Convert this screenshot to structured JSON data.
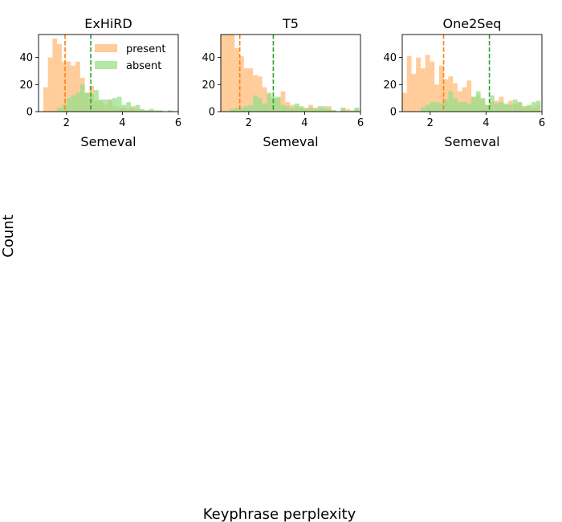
{
  "figure": {
    "ylabel": "Count",
    "xlabel": "Keyphrase perplexity"
  },
  "colors": {
    "present": "#ffbb78",
    "absent": "#98df8a",
    "present_mean_line": "#ff7f0e",
    "absent_mean_line": "#2ca02c"
  },
  "chart_data": [
    {
      "type": "histogram",
      "title": "ExHiRD",
      "xlabel": "Semeval",
      "ylabel": "",
      "xlim": [
        1.0,
        6.0
      ],
      "ylim": [
        0,
        57
      ],
      "xticks": [
        2,
        4,
        6
      ],
      "yticks": [
        0,
        20,
        40
      ],
      "bin_width": 0.165,
      "legend": {
        "placement": "top-right",
        "entries": [
          "present",
          "absent"
        ]
      },
      "series": [
        {
          "name": "present",
          "bins": [
            {
              "x": 1.17,
              "count": 18
            },
            {
              "x": 1.335,
              "count": 40
            },
            {
              "x": 1.5,
              "count": 54
            },
            {
              "x": 1.665,
              "count": 50
            },
            {
              "x": 1.83,
              "count": 37
            },
            {
              "x": 1.995,
              "count": 37
            },
            {
              "x": 2.16,
              "count": 34
            },
            {
              "x": 2.325,
              "count": 37
            },
            {
              "x": 2.49,
              "count": 25
            },
            {
              "x": 2.655,
              "count": 14
            },
            {
              "x": 2.82,
              "count": 19
            },
            {
              "x": 2.985,
              "count": 8
            },
            {
              "x": 3.15,
              "count": 8
            },
            {
              "x": 3.315,
              "count": 5
            },
            {
              "x": 3.48,
              "count": 9
            },
            {
              "x": 3.645,
              "count": 4
            },
            {
              "x": 3.81,
              "count": 3
            },
            {
              "x": 3.975,
              "count": 3
            },
            {
              "x": 4.14,
              "count": 2
            },
            {
              "x": 4.305,
              "count": 4
            },
            {
              "x": 4.47,
              "count": 2
            },
            {
              "x": 4.635,
              "count": 1
            },
            {
              "x": 4.8,
              "count": 1
            },
            {
              "x": 4.965,
              "count": 1
            }
          ],
          "mean": 1.95
        },
        {
          "name": "absent",
          "bins": [
            {
              "x": 1.665,
              "count": 3
            },
            {
              "x": 1.83,
              "count": 5
            },
            {
              "x": 1.995,
              "count": 10
            },
            {
              "x": 2.16,
              "count": 12
            },
            {
              "x": 2.325,
              "count": 14
            },
            {
              "x": 2.49,
              "count": 20
            },
            {
              "x": 2.655,
              "count": 14
            },
            {
              "x": 2.82,
              "count": 13
            },
            {
              "x": 2.985,
              "count": 16
            },
            {
              "x": 3.15,
              "count": 9
            },
            {
              "x": 3.315,
              "count": 9
            },
            {
              "x": 3.48,
              "count": 9
            },
            {
              "x": 3.645,
              "count": 10
            },
            {
              "x": 3.81,
              "count": 11
            },
            {
              "x": 3.975,
              "count": 5
            },
            {
              "x": 4.14,
              "count": 7
            },
            {
              "x": 4.305,
              "count": 3
            },
            {
              "x": 4.47,
              "count": 5
            },
            {
              "x": 4.635,
              "count": 2
            },
            {
              "x": 4.8,
              "count": 1
            },
            {
              "x": 4.965,
              "count": 2
            },
            {
              "x": 5.13,
              "count": 1
            },
            {
              "x": 5.295,
              "count": 1
            },
            {
              "x": 5.625,
              "count": 1
            }
          ],
          "mean": 2.87
        }
      ]
    },
    {
      "type": "histogram",
      "title": "T5",
      "xlabel": "Semeval",
      "ylabel": "",
      "xlim": [
        1.0,
        6.0
      ],
      "ylim": [
        0,
        57
      ],
      "xticks": [
        2,
        4,
        6
      ],
      "yticks": [
        0,
        20,
        40
      ],
      "bin_width": 0.165,
      "series": [
        {
          "name": "present",
          "bins": [
            {
              "x": 1.0,
              "count": 57
            },
            {
              "x": 1.165,
              "count": 57
            },
            {
              "x": 1.33,
              "count": 57
            },
            {
              "x": 1.495,
              "count": 47
            },
            {
              "x": 1.66,
              "count": 41
            },
            {
              "x": 1.825,
              "count": 32
            },
            {
              "x": 1.99,
              "count": 32
            },
            {
              "x": 2.155,
              "count": 27
            },
            {
              "x": 2.32,
              "count": 26
            },
            {
              "x": 2.485,
              "count": 18
            },
            {
              "x": 2.65,
              "count": 13
            },
            {
              "x": 2.815,
              "count": 10
            },
            {
              "x": 2.98,
              "count": 10
            },
            {
              "x": 3.145,
              "count": 15
            },
            {
              "x": 3.31,
              "count": 7
            },
            {
              "x": 3.475,
              "count": 5
            },
            {
              "x": 3.64,
              "count": 4
            },
            {
              "x": 3.805,
              "count": 3
            },
            {
              "x": 3.97,
              "count": 3
            },
            {
              "x": 4.135,
              "count": 5
            },
            {
              "x": 4.3,
              "count": 3
            },
            {
              "x": 4.465,
              "count": 3
            },
            {
              "x": 4.63,
              "count": 2
            },
            {
              "x": 4.795,
              "count": 4
            },
            {
              "x": 4.96,
              "count": 1
            },
            {
              "x": 5.29,
              "count": 2
            },
            {
              "x": 5.455,
              "count": 2
            },
            {
              "x": 5.785,
              "count": 2
            }
          ],
          "mean": 1.68
        },
        {
          "name": "absent",
          "bins": [
            {
              "x": 1.33,
              "count": 2
            },
            {
              "x": 1.495,
              "count": 3
            },
            {
              "x": 1.66,
              "count": 3
            },
            {
              "x": 1.825,
              "count": 4
            },
            {
              "x": 1.99,
              "count": 5
            },
            {
              "x": 2.155,
              "count": 12
            },
            {
              "x": 2.32,
              "count": 10
            },
            {
              "x": 2.485,
              "count": 6
            },
            {
              "x": 2.65,
              "count": 14
            },
            {
              "x": 2.815,
              "count": 11
            },
            {
              "x": 2.98,
              "count": 11
            },
            {
              "x": 3.145,
              "count": 5
            },
            {
              "x": 3.31,
              "count": 4
            },
            {
              "x": 3.475,
              "count": 3
            },
            {
              "x": 3.64,
              "count": 6
            },
            {
              "x": 3.805,
              "count": 4
            },
            {
              "x": 3.97,
              "count": 2
            },
            {
              "x": 4.135,
              "count": 3
            },
            {
              "x": 4.3,
              "count": 2
            },
            {
              "x": 4.465,
              "count": 4
            },
            {
              "x": 4.63,
              "count": 4
            },
            {
              "x": 4.795,
              "count": 2
            },
            {
              "x": 4.96,
              "count": 1
            },
            {
              "x": 5.29,
              "count": 3
            },
            {
              "x": 5.62,
              "count": 1
            },
            {
              "x": 5.785,
              "count": 3
            }
          ],
          "mean": 2.88
        }
      ]
    },
    {
      "type": "histogram",
      "title": "One2Seq",
      "xlabel": "Semeval",
      "ylabel": "",
      "xlim": [
        1.0,
        6.0
      ],
      "ylim": [
        0,
        57
      ],
      "xticks": [
        2,
        4,
        6
      ],
      "yticks": [
        0,
        20,
        40
      ],
      "bin_width": 0.165,
      "series": [
        {
          "name": "present",
          "bins": [
            {
              "x": 1.0,
              "count": 14
            },
            {
              "x": 1.165,
              "count": 41
            },
            {
              "x": 1.33,
              "count": 28
            },
            {
              "x": 1.495,
              "count": 40
            },
            {
              "x": 1.66,
              "count": 32
            },
            {
              "x": 1.825,
              "count": 42
            },
            {
              "x": 1.99,
              "count": 37
            },
            {
              "x": 2.155,
              "count": 20
            },
            {
              "x": 2.32,
              "count": 34
            },
            {
              "x": 2.485,
              "count": 24
            },
            {
              "x": 2.65,
              "count": 26
            },
            {
              "x": 2.815,
              "count": 21
            },
            {
              "x": 2.98,
              "count": 15
            },
            {
              "x": 3.145,
              "count": 18
            },
            {
              "x": 3.31,
              "count": 23
            },
            {
              "x": 3.475,
              "count": 11
            },
            {
              "x": 3.64,
              "count": 12
            },
            {
              "x": 3.805,
              "count": 9
            },
            {
              "x": 3.97,
              "count": 5
            },
            {
              "x": 4.135,
              "count": 7
            },
            {
              "x": 4.3,
              "count": 8
            },
            {
              "x": 4.465,
              "count": 11
            },
            {
              "x": 4.63,
              "count": 5
            },
            {
              "x": 4.795,
              "count": 8
            },
            {
              "x": 4.96,
              "count": 6
            },
            {
              "x": 5.125,
              "count": 7
            },
            {
              "x": 5.29,
              "count": 4
            },
            {
              "x": 5.455,
              "count": 4
            },
            {
              "x": 5.62,
              "count": 3
            },
            {
              "x": 5.785,
              "count": 5
            }
          ],
          "mean": 2.48
        },
        {
          "name": "absent",
          "bins": [
            {
              "x": 1.66,
              "count": 3
            },
            {
              "x": 1.825,
              "count": 5
            },
            {
              "x": 1.99,
              "count": 7
            },
            {
              "x": 2.155,
              "count": 7
            },
            {
              "x": 2.32,
              "count": 6
            },
            {
              "x": 2.485,
              "count": 9
            },
            {
              "x": 2.65,
              "count": 15
            },
            {
              "x": 2.815,
              "count": 10
            },
            {
              "x": 2.98,
              "count": 7
            },
            {
              "x": 3.145,
              "count": 7
            },
            {
              "x": 3.31,
              "count": 6
            },
            {
              "x": 3.475,
              "count": 11
            },
            {
              "x": 3.64,
              "count": 15
            },
            {
              "x": 3.805,
              "count": 10
            },
            {
              "x": 3.97,
              "count": 5
            },
            {
              "x": 4.135,
              "count": 12
            },
            {
              "x": 4.3,
              "count": 6
            },
            {
              "x": 4.465,
              "count": 7
            },
            {
              "x": 4.63,
              "count": 6
            },
            {
              "x": 4.795,
              "count": 5
            },
            {
              "x": 4.96,
              "count": 9
            },
            {
              "x": 5.125,
              "count": 7
            },
            {
              "x": 5.29,
              "count": 4
            },
            {
              "x": 5.455,
              "count": 5
            },
            {
              "x": 5.62,
              "count": 7
            },
            {
              "x": 5.785,
              "count": 8
            }
          ],
          "mean": 4.12
        }
      ]
    }
  ]
}
